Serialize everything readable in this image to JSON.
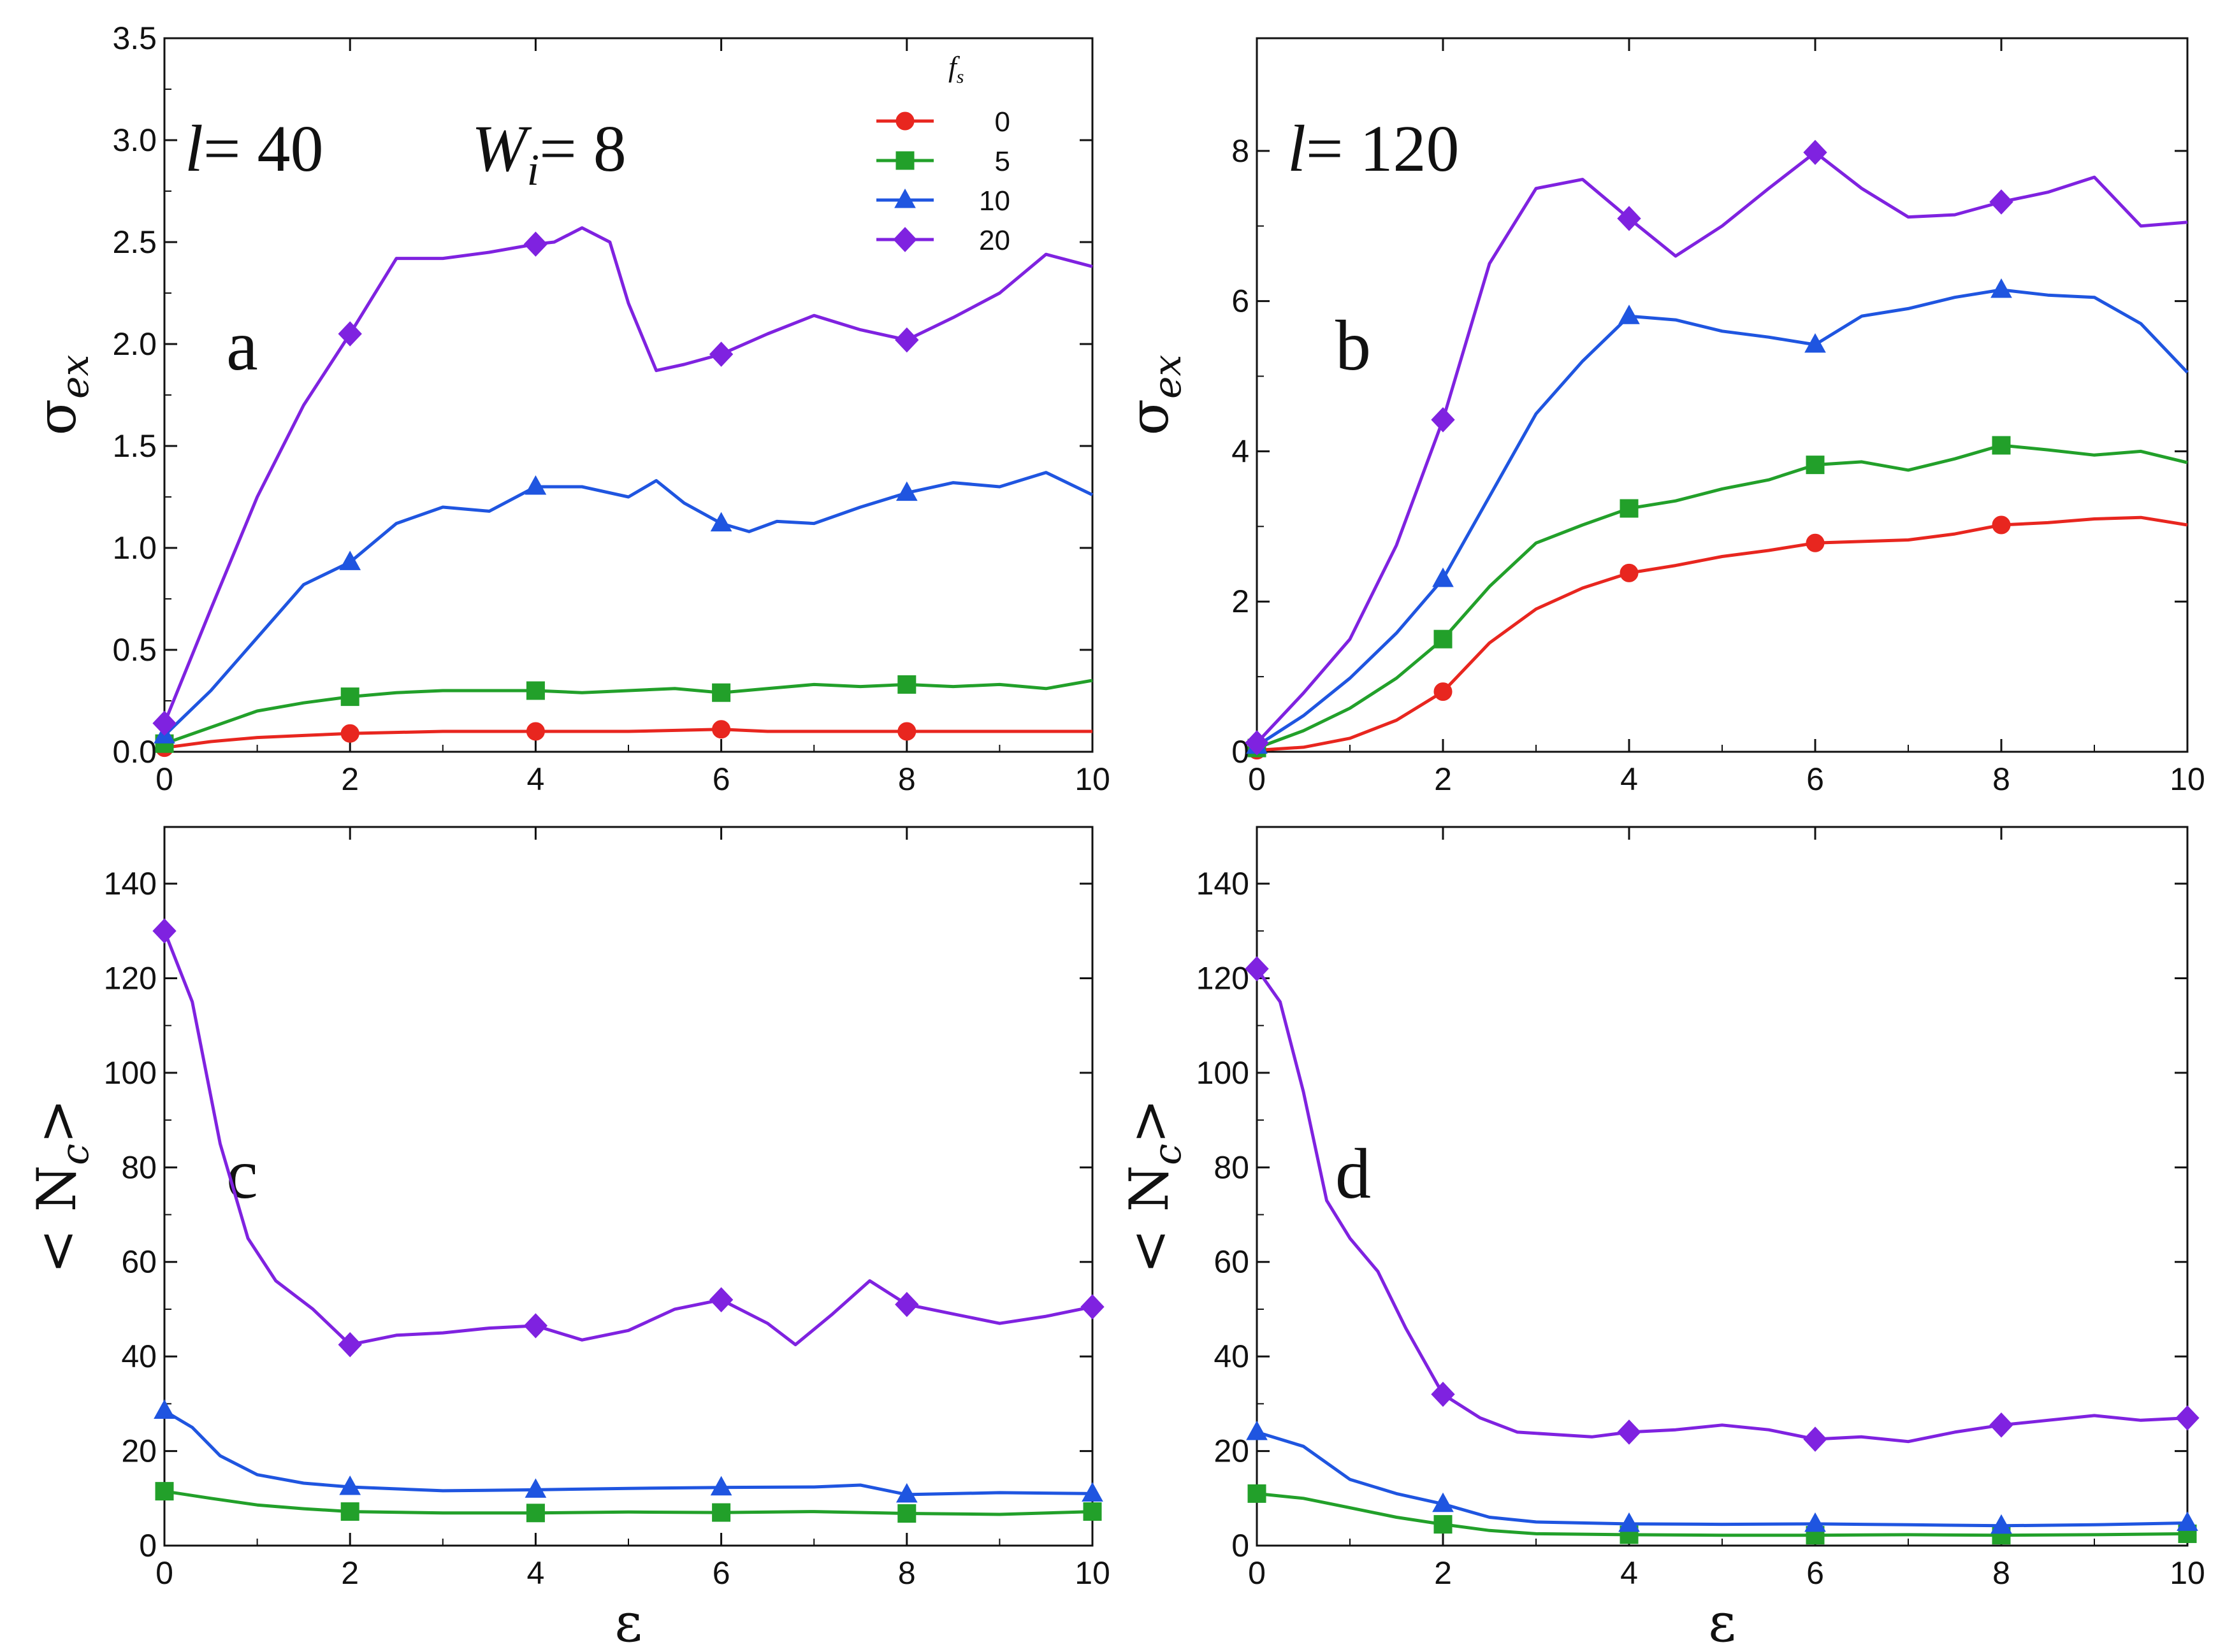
{
  "colors": {
    "fs0": "#e8261f",
    "fs5": "#22a02a",
    "fs10": "#1f55e0",
    "fs20": "#7f22e0"
  },
  "legend": {
    "title_main": "f",
    "title_sub": "s",
    "entries": [
      {
        "label": "0",
        "series": "fs0",
        "marker": "circle"
      },
      {
        "label": "5",
        "series": "fs5",
        "marker": "square"
      },
      {
        "label": "10",
        "series": "fs10",
        "marker": "triangle"
      },
      {
        "label": "20",
        "series": "fs20",
        "marker": "diamond"
      }
    ]
  },
  "annotations": {
    "a_l": {
      "italic": "l",
      "rest": "= 40"
    },
    "a_w": {
      "italic": "W",
      "sub": "i",
      "rest": "= 8"
    },
    "b_l": {
      "italic": "l",
      "rest": "= 120"
    }
  },
  "chart_data": [
    {
      "id": "a",
      "type": "line",
      "panel_label": "a",
      "xlabel": "",
      "ylabel_base": "σ",
      "ylabel_sub": "ex",
      "xlim": [
        0,
        10
      ],
      "ylim": [
        0,
        3.5
      ],
      "xticks": [
        0,
        2,
        4,
        6,
        8,
        10
      ],
      "yticks": [
        0,
        0.5,
        1,
        1.5,
        2,
        2.5,
        3,
        3.5
      ],
      "ytick_labels": [
        "0.0",
        "0.5",
        "1.0",
        "1.5",
        "2.0",
        "2.5",
        "3.0",
        "3.5"
      ],
      "markers_at": [
        0,
        2,
        4,
        6,
        8
      ],
      "series": [
        {
          "name": "0",
          "key": "fs0",
          "marker": "circle",
          "x": [
            0,
            0.5,
            1,
            1.5,
            2,
            3,
            4,
            5,
            6,
            6.5,
            7,
            8,
            9,
            10
          ],
          "y": [
            0.02,
            0.05,
            0.07,
            0.08,
            0.09,
            0.1,
            0.1,
            0.1,
            0.11,
            0.1,
            0.1,
            0.1,
            0.1,
            0.1
          ]
        },
        {
          "name": "5",
          "key": "fs5",
          "marker": "square",
          "x": [
            0,
            0.5,
            1,
            1.5,
            2,
            2.5,
            3,
            3.5,
            4,
            4.5,
            5,
            5.5,
            6,
            6.5,
            7,
            7.5,
            8,
            8.5,
            9,
            9.5,
            10
          ],
          "y": [
            0.04,
            0.12,
            0.2,
            0.24,
            0.27,
            0.29,
            0.3,
            0.3,
            0.3,
            0.29,
            0.3,
            0.31,
            0.29,
            0.31,
            0.33,
            0.32,
            0.33,
            0.32,
            0.33,
            0.31,
            0.35
          ]
        },
        {
          "name": "10",
          "key": "fs10",
          "marker": "triangle",
          "x": [
            0,
            0.5,
            1,
            1.5,
            2,
            2.5,
            3,
            3.5,
            4,
            4.5,
            5,
            5.3,
            5.6,
            6,
            6.3,
            6.6,
            7,
            7.5,
            8,
            8.5,
            9,
            9.5,
            10
          ],
          "y": [
            0.08,
            0.3,
            0.56,
            0.82,
            0.93,
            1.12,
            1.2,
            1.18,
            1.3,
            1.3,
            1.25,
            1.33,
            1.22,
            1.12,
            1.08,
            1.13,
            1.12,
            1.2,
            1.27,
            1.32,
            1.3,
            1.37,
            1.26
          ]
        },
        {
          "name": "20",
          "key": "fs20",
          "marker": "diamond",
          "x": [
            0,
            0.5,
            1,
            1.5,
            2,
            2.5,
            3,
            3.5,
            4,
            4.2,
            4.5,
            4.8,
            5,
            5.3,
            5.6,
            6,
            6.5,
            7,
            7.5,
            8,
            8.5,
            9,
            9.5,
            10
          ],
          "y": [
            0.14,
            0.7,
            1.25,
            1.7,
            2.05,
            2.42,
            2.42,
            2.45,
            2.49,
            2.5,
            2.57,
            2.5,
            2.2,
            1.87,
            1.9,
            1.95,
            2.05,
            2.14,
            2.07,
            2.02,
            2.13,
            2.25,
            2.44,
            2.38
          ]
        }
      ]
    },
    {
      "id": "b",
      "type": "line",
      "panel_label": "b",
      "xlabel": "",
      "ylabel_base": "σ",
      "ylabel_sub": "ex",
      "xlim": [
        0,
        10
      ],
      "ylim": [
        0,
        9.5
      ],
      "xticks": [
        0,
        2,
        4,
        6,
        8,
        10
      ],
      "yticks": [
        0,
        2,
        4,
        6,
        8
      ],
      "ytick_labels": [
        "0",
        "2",
        "4",
        "6",
        "8"
      ],
      "markers_at": [
        0,
        2,
        4,
        6,
        8
      ],
      "series": [
        {
          "name": "0",
          "key": "fs0",
          "marker": "circle",
          "x": [
            0,
            0.5,
            1,
            1.5,
            2,
            2.5,
            3,
            3.5,
            4,
            4.5,
            5,
            5.5,
            6,
            6.5,
            7,
            7.5,
            8,
            8.5,
            9,
            9.5,
            10
          ],
          "y": [
            0.02,
            0.06,
            0.18,
            0.42,
            0.8,
            1.45,
            1.9,
            2.18,
            2.38,
            2.48,
            2.6,
            2.68,
            2.78,
            2.8,
            2.82,
            2.9,
            3.02,
            3.05,
            3.1,
            3.12,
            3.02
          ]
        },
        {
          "name": "5",
          "key": "fs5",
          "marker": "square",
          "x": [
            0,
            0.5,
            1,
            1.5,
            2,
            2.5,
            3,
            3.5,
            4,
            4.5,
            5,
            5.5,
            6,
            6.5,
            7,
            7.5,
            8,
            8.5,
            9,
            9.5,
            10
          ],
          "y": [
            0.05,
            0.28,
            0.58,
            0.98,
            1.5,
            2.2,
            2.78,
            3.02,
            3.24,
            3.34,
            3.5,
            3.62,
            3.82,
            3.86,
            3.75,
            3.9,
            4.08,
            4.02,
            3.95,
            4.0,
            3.85
          ]
        },
        {
          "name": "10",
          "key": "fs10",
          "marker": "triangle",
          "x": [
            0,
            0.5,
            1,
            1.5,
            2,
            2.5,
            3,
            3.5,
            4,
            4.5,
            5,
            5.5,
            6,
            6.5,
            7,
            7.5,
            8,
            8.5,
            9,
            9.5,
            10
          ],
          "y": [
            0.08,
            0.48,
            0.98,
            1.58,
            2.3,
            3.4,
            4.5,
            5.2,
            5.8,
            5.75,
            5.6,
            5.52,
            5.42,
            5.8,
            5.9,
            6.05,
            6.15,
            6.08,
            6.05,
            5.7,
            5.05
          ]
        },
        {
          "name": "20",
          "key": "fs20",
          "marker": "diamond",
          "x": [
            0,
            0.5,
            1,
            1.5,
            2,
            2.5,
            3,
            3.5,
            4,
            4.5,
            5,
            5.5,
            6,
            6.5,
            7,
            7.5,
            8,
            8.5,
            9,
            9.5,
            10
          ],
          "y": [
            0.12,
            0.78,
            1.5,
            2.75,
            4.42,
            6.5,
            7.5,
            7.62,
            7.1,
            6.6,
            7.0,
            7.5,
            7.98,
            7.5,
            7.12,
            7.15,
            7.32,
            7.45,
            7.65,
            7.0,
            7.05
          ]
        }
      ]
    },
    {
      "id": "c",
      "type": "line",
      "panel_label": "c",
      "xlabel": "ε",
      "ylabel_base": "< N",
      "ylabel_sub": "c",
      "ylabel_end": ">",
      "xlim": [
        0,
        10
      ],
      "ylim": [
        0,
        152
      ],
      "xticks": [
        0,
        2,
        4,
        6,
        8,
        10
      ],
      "yticks": [
        0,
        20,
        40,
        60,
        80,
        100,
        120,
        140
      ],
      "ytick_labels": [
        "0",
        "20",
        "40",
        "60",
        "80",
        "100",
        "120",
        "140"
      ],
      "markers_at": [
        0,
        2,
        4,
        6,
        8,
        10
      ],
      "series": [
        {
          "name": "5",
          "key": "fs5",
          "marker": "square",
          "x": [
            0,
            0.5,
            1,
            1.5,
            2,
            3,
            4,
            5,
            6,
            7,
            8,
            9,
            10
          ],
          "y": [
            11.5,
            10,
            8.6,
            7.8,
            7.2,
            6.9,
            6.9,
            7.1,
            7.0,
            7.2,
            6.8,
            6.6,
            7.2
          ]
        },
        {
          "name": "10",
          "key": "fs10",
          "marker": "triangle",
          "x": [
            0,
            0.3,
            0.6,
            1,
            1.5,
            2,
            3,
            4,
            5,
            6,
            7,
            7.5,
            8,
            9,
            10
          ],
          "y": [
            28.5,
            25,
            19,
            15,
            13.2,
            12.4,
            11.6,
            11.8,
            12.1,
            12.3,
            12.4,
            12.8,
            10.8,
            11.2,
            11.0
          ]
        },
        {
          "name": "20",
          "key": "fs20",
          "marker": "diamond",
          "x": [
            0,
            0.3,
            0.6,
            0.9,
            1.2,
            1.6,
            2,
            2.5,
            3,
            3.5,
            4,
            4.5,
            5,
            5.5,
            6,
            6.5,
            6.8,
            7.2,
            7.6,
            8,
            8.5,
            9,
            9.5,
            10
          ],
          "y": [
            130,
            115,
            85,
            65,
            56,
            50,
            42.5,
            44.5,
            45,
            46,
            46.5,
            43.5,
            45.5,
            50,
            52,
            47,
            42.5,
            49,
            56,
            51,
            49,
            47,
            48.5,
            50.5
          ]
        }
      ]
    },
    {
      "id": "d",
      "type": "line",
      "panel_label": "d",
      "xlabel": "ε",
      "ylabel_base": "< N",
      "ylabel_sub": "c",
      "ylabel_end": ">",
      "xlim": [
        0,
        10
      ],
      "ylim": [
        0,
        152
      ],
      "xticks": [
        0,
        2,
        4,
        6,
        8,
        10
      ],
      "yticks": [
        0,
        20,
        40,
        60,
        80,
        100,
        120,
        140
      ],
      "ytick_labels": [
        "0",
        "20",
        "40",
        "60",
        "80",
        "100",
        "120",
        "140"
      ],
      "markers_at": [
        0,
        2,
        4,
        6,
        8,
        10
      ],
      "series": [
        {
          "name": "5",
          "key": "fs5",
          "marker": "square",
          "x": [
            0,
            0.5,
            1,
            1.5,
            2,
            2.5,
            3,
            4,
            5,
            6,
            7,
            8,
            9,
            10
          ],
          "y": [
            11,
            10,
            8,
            6,
            4.5,
            3.2,
            2.5,
            2.3,
            2.2,
            2.2,
            2.3,
            2.2,
            2.3,
            2.5
          ]
        },
        {
          "name": "10",
          "key": "fs10",
          "marker": "triangle",
          "x": [
            0,
            0.5,
            1,
            1.5,
            2,
            2.5,
            3,
            4,
            5,
            6,
            7,
            8,
            9,
            10
          ],
          "y": [
            24,
            21,
            14,
            11,
            8.8,
            6,
            5,
            4.6,
            4.5,
            4.6,
            4.4,
            4.2,
            4.4,
            4.8
          ]
        },
        {
          "name": "20",
          "key": "fs20",
          "marker": "diamond",
          "x": [
            0,
            0.25,
            0.5,
            0.75,
            1,
            1.3,
            1.6,
            2,
            2.4,
            2.8,
            3.2,
            3.6,
            4,
            4.5,
            5,
            5.5,
            6,
            6.5,
            7,
            7.5,
            8,
            8.5,
            9,
            9.5,
            10
          ],
          "y": [
            122,
            115,
            96,
            73,
            65,
            58,
            46,
            32,
            27,
            24,
            23.5,
            23,
            24,
            24.5,
            25.5,
            24.5,
            22.5,
            23,
            22,
            24,
            25.5,
            26.5,
            27.5,
            26.5,
            27
          ]
        }
      ]
    }
  ]
}
